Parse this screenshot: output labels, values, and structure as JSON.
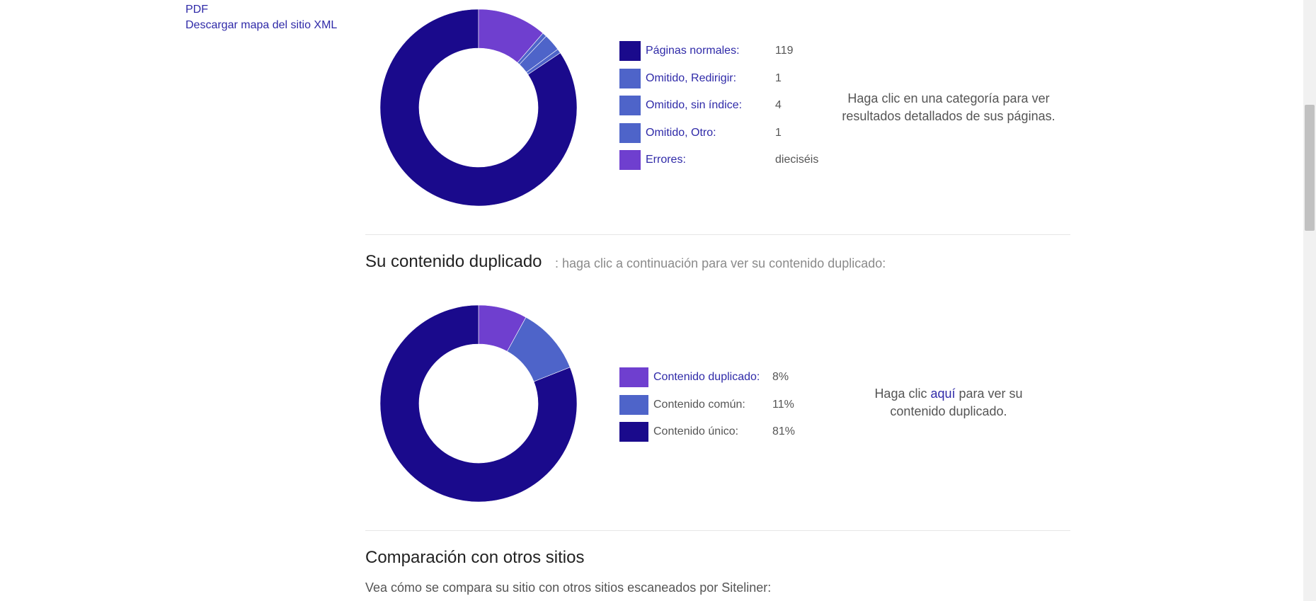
{
  "sidebar": {
    "links": [
      "PDF",
      "Descargar mapa del sitio XML"
    ]
  },
  "colors": {
    "dark_navy": "#1a0a8c",
    "medium_blue": "#4e64c9",
    "violet": "#6f3fcf",
    "link": "#2f2aa8"
  },
  "pages_chart": {
    "legend": [
      {
        "label": "Páginas normales:",
        "value": "119",
        "color": "#1a0a8c"
      },
      {
        "label": "Omitido, Redirigir:",
        "value": "1",
        "color": "#4e64c9"
      },
      {
        "label": "Omitido, sin índice:",
        "value": "4",
        "color": "#4e64c9"
      },
      {
        "label": "Omitido, Otro:",
        "value": "1",
        "color": "#4e64c9"
      },
      {
        "label": "Errores:",
        "value": "dieciséis",
        "color": "#6f3fcf"
      }
    ],
    "hint": "Haga clic en una categoría para ver resultados detallados de sus páginas."
  },
  "duplicate_section": {
    "title": "Su contenido duplicado",
    "subtitle": ": haga clic a continuación para ver su contenido duplicado:",
    "legend": [
      {
        "label": "Contenido duplicado:",
        "value": "8%",
        "color": "#6f3fcf",
        "link": true
      },
      {
        "label": "Contenido común:",
        "value": "11%",
        "color": "#4e64c9",
        "link": false
      },
      {
        "label": "Contenido único:",
        "value": "81%",
        "color": "#1a0a8c",
        "link": false
      }
    ],
    "hint_before": "Haga clic ",
    "hint_link": "aquí",
    "hint_after": " para ver su contenido duplicado."
  },
  "comparison_section": {
    "title": "Comparación con otros sitios",
    "text": "Vea cómo se compara su sitio con otros sitios escaneados por Siteliner:"
  },
  "chart_data": [
    {
      "type": "pie",
      "categories": [
        "Páginas normales",
        "Omitido, Redirigir",
        "Omitido, sin índice",
        "Omitido, Otro",
        "Errores"
      ],
      "values": [
        119,
        1,
        4,
        1,
        16
      ],
      "colors": [
        "#1a0a8c",
        "#4e64c9",
        "#4e64c9",
        "#4e64c9",
        "#6f3fcf"
      ]
    },
    {
      "type": "pie",
      "categories": [
        "Contenido duplicado",
        "Contenido común",
        "Contenido único"
      ],
      "values": [
        8,
        11,
        81
      ],
      "colors": [
        "#6f3fcf",
        "#4e64c9",
        "#1a0a8c"
      ]
    }
  ]
}
